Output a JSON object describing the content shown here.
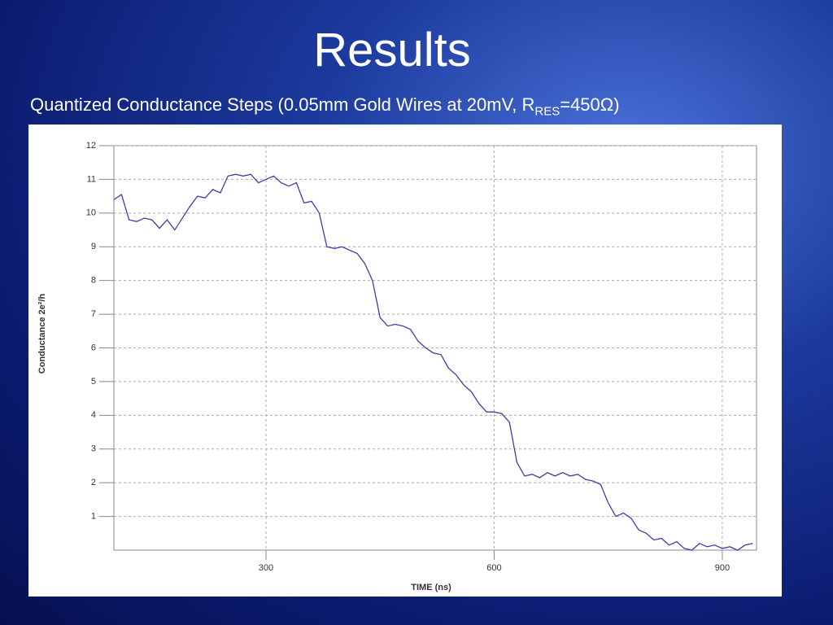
{
  "slide": {
    "title": "Results",
    "subtitle": {
      "text": "Quantized Conductance Steps (0.05mm Gold Wires at 20mV, R",
      "sub": "RES",
      "tail": "=450Ω)"
    }
  },
  "chart_data": {
    "type": "line",
    "xlabel": "TIME (ns)",
    "ylabel": "Conductance 2e²/h",
    "xlim": [
      100,
      945
    ],
    "ylim": [
      0,
      12
    ],
    "xticks": [
      300,
      600,
      900
    ],
    "yticks": [
      1,
      2,
      3,
      4,
      5,
      6,
      7,
      8,
      9,
      10,
      11,
      12
    ],
    "grid": true,
    "series": [
      {
        "color": "#3a3fa8",
        "x": [
          100,
          110,
          120,
          130,
          140,
          150,
          160,
          170,
          180,
          190,
          200,
          210,
          220,
          230,
          240,
          250,
          260,
          270,
          280,
          290,
          300,
          310,
          320,
          330,
          340,
          350,
          360,
          370,
          380,
          390,
          400,
          410,
          420,
          430,
          440,
          450,
          460,
          470,
          480,
          490,
          500,
          510,
          520,
          530,
          540,
          550,
          560,
          570,
          580,
          590,
          600,
          610,
          620,
          630,
          640,
          650,
          660,
          670,
          680,
          690,
          700,
          710,
          720,
          730,
          740,
          750,
          760,
          770,
          780,
          790,
          800,
          810,
          820,
          830,
          840,
          850,
          860,
          870,
          880,
          890,
          900,
          910,
          920,
          930,
          940
        ],
        "values": [
          10.4,
          10.55,
          9.8,
          9.75,
          9.85,
          9.8,
          9.55,
          9.8,
          9.5,
          9.85,
          10.2,
          10.5,
          10.45,
          10.7,
          10.6,
          11.1,
          11.15,
          11.1,
          11.15,
          10.9,
          11.0,
          11.1,
          10.9,
          10.8,
          10.9,
          10.3,
          10.35,
          10.0,
          9.0,
          8.95,
          9.0,
          8.9,
          8.8,
          8.5,
          8.0,
          6.9,
          6.65,
          6.7,
          6.65,
          6.55,
          6.2,
          6.0,
          5.85,
          5.8,
          5.4,
          5.2,
          4.9,
          4.7,
          4.35,
          4.1,
          4.1,
          4.05,
          3.8,
          2.6,
          2.2,
          2.25,
          2.15,
          2.3,
          2.2,
          2.3,
          2.2,
          2.25,
          2.1,
          2.05,
          1.95,
          1.4,
          1.0,
          1.1,
          0.95,
          0.6,
          0.5,
          0.3,
          0.35,
          0.15,
          0.25,
          0.05,
          0.0,
          0.2,
          0.1,
          0.15,
          0.05,
          0.1,
          0.0,
          0.15,
          0.2
        ]
      }
    ]
  }
}
